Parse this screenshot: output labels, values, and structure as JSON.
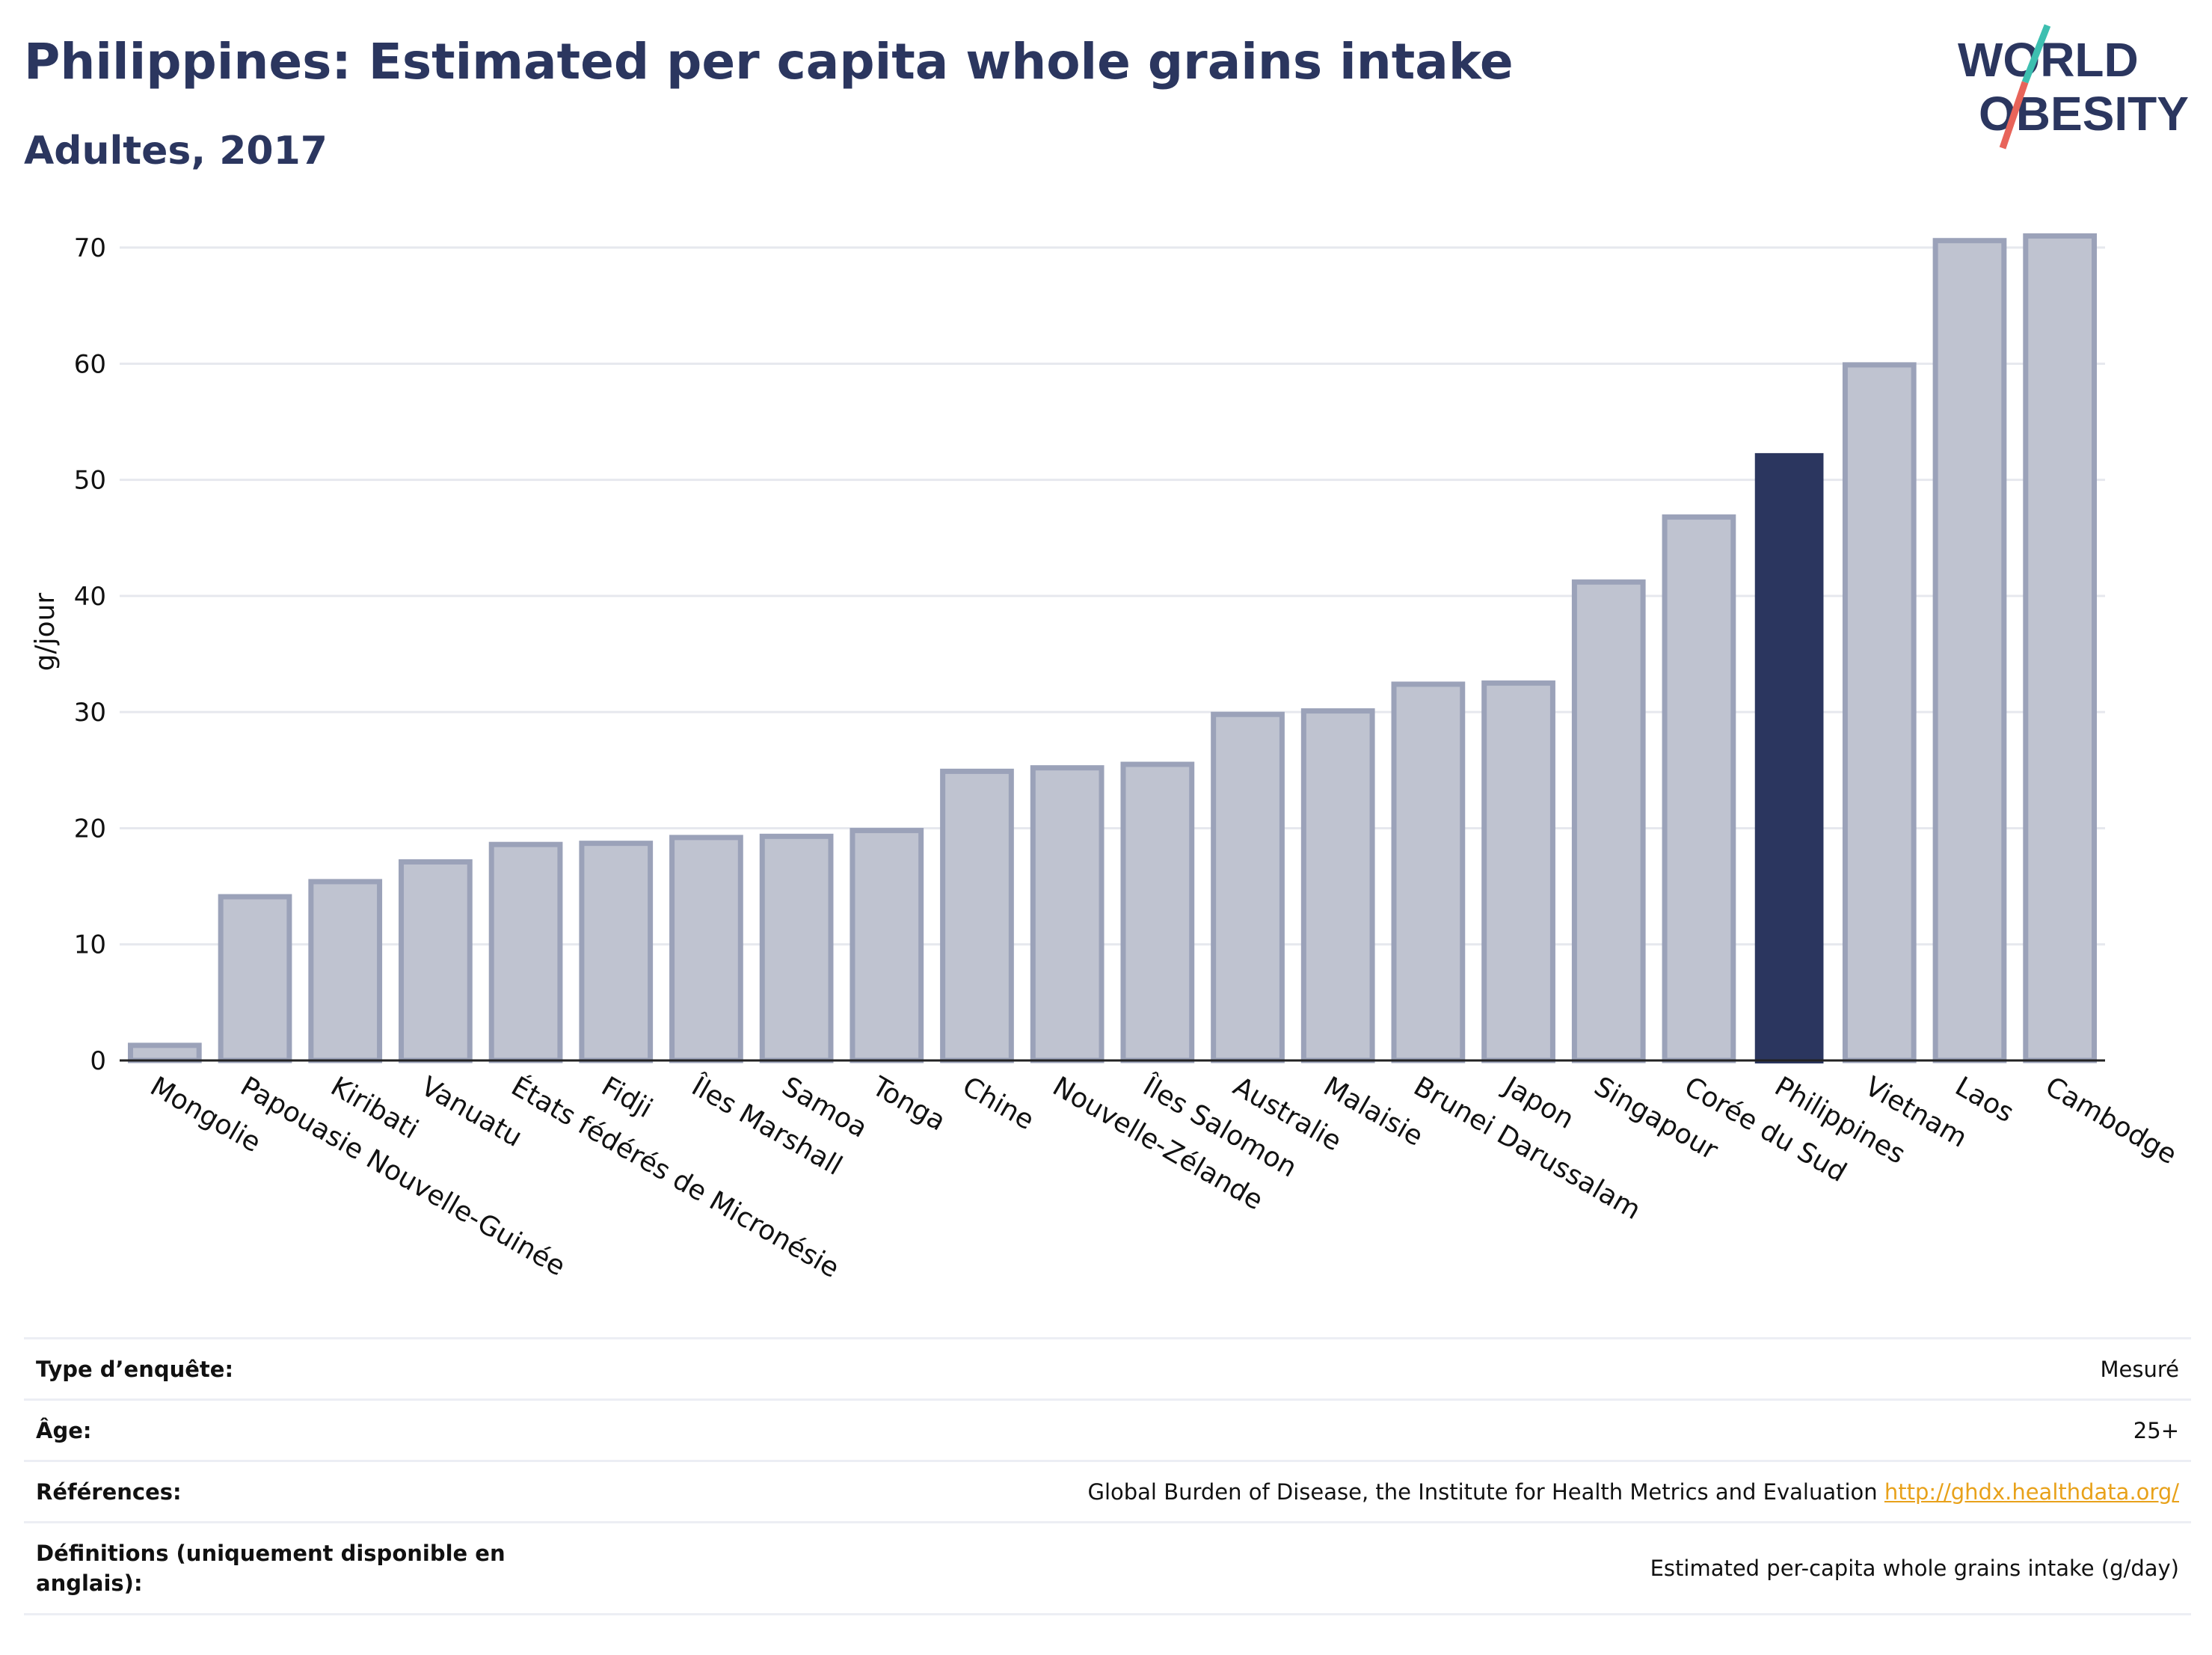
{
  "header": {
    "title": "Philippines: Estimated per capita whole grains intake",
    "subtitle": "Adultes, 2017"
  },
  "logo": {
    "line1": "WORLD",
    "line2": "OBESITY",
    "colors": {
      "text": "#2b365f",
      "slash_top": "#3dbfb0",
      "slash_bottom": "#e8645a"
    }
  },
  "chart_data": {
    "type": "bar",
    "ylabel": "g/jour",
    "xlabel": "",
    "ylim": [
      0,
      72
    ],
    "yticks": [
      0,
      10,
      20,
      30,
      40,
      50,
      60,
      70
    ],
    "grid": true,
    "categories": [
      "Mongolie",
      "Papouasie Nouvelle-Guinée",
      "Kiribati",
      "Vanuatu",
      "États fédérés de Micronésie",
      "Fidji",
      "Îles Marshall",
      "Samoa",
      "Tonga",
      "Chine",
      "Nouvelle-Zélande",
      "Îles Salomon",
      "Australie",
      "Malaisie",
      "Brunei Darussalam",
      "Japon",
      "Singapour",
      "Corée du Sud",
      "Philippines",
      "Vietnam",
      "Laos",
      "Cambodge"
    ],
    "values": [
      1.3,
      14.1,
      15.4,
      17.1,
      18.6,
      18.7,
      19.2,
      19.3,
      19.8,
      24.9,
      25.2,
      25.5,
      29.8,
      30.1,
      32.4,
      32.5,
      41.2,
      46.8,
      52.3,
      59.9,
      70.6,
      71.0
    ],
    "highlight": "Philippines",
    "colors": {
      "bar": "#bfc3d0",
      "bar_edge": "#9ba2b9",
      "highlight": "#2b365f",
      "grid": "#e6e8ee",
      "axis": "#222222"
    }
  },
  "footer": {
    "rows": [
      {
        "label": "Type d’enquête:",
        "value": "Mesuré"
      },
      {
        "label": "Âge:",
        "value": "25+"
      },
      {
        "label": "Références:",
        "value": "Global Burden of Disease, the Institute for Health Metrics and Evaluation",
        "link": "http://ghdx.healthdata.org/"
      },
      {
        "label": "Définitions (uniquement disponible en anglais):",
        "value": "Estimated per-capita whole grains intake (g/day)"
      }
    ]
  }
}
